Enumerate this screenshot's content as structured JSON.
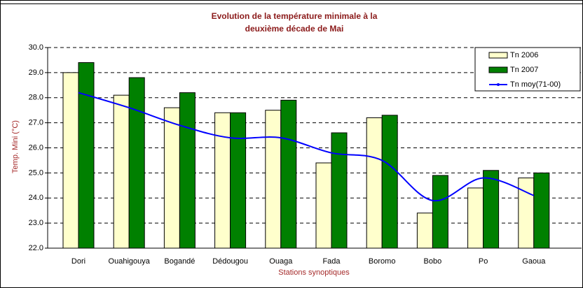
{
  "chart_data": {
    "type": "bar",
    "title": [
      "Evolution de la température minimale à la",
      "deuxième décade de Mai"
    ],
    "y_label": "Temp. Mini (°C)",
    "x_label": "Stations synoptiques",
    "categories": [
      "Dori",
      "Ouahigouya",
      "Bogandé",
      "Dédougou",
      "Ouaga",
      "Fada",
      "Boromo",
      "Bobo",
      "Po",
      "Gaoua"
    ],
    "series": [
      {
        "name": "Tn 2006",
        "type": "bar",
        "color": "#ffffcc",
        "values": [
          29.0,
          28.1,
          27.6,
          27.4,
          27.5,
          25.4,
          27.2,
          23.4,
          24.4,
          24.8
        ]
      },
      {
        "name": "Tn 2007",
        "type": "bar",
        "color": "#008000",
        "values": [
          29.4,
          28.8,
          28.2,
          27.4,
          27.9,
          26.6,
          27.3,
          24.9,
          25.1,
          25.0
        ]
      },
      {
        "name": "Tn moy(71-00)",
        "type": "line",
        "color": "#0000ff",
        "values": [
          28.2,
          27.6,
          26.9,
          26.4,
          26.4,
          25.8,
          25.5,
          23.9,
          24.8,
          24.1
        ]
      }
    ],
    "ylim": [
      22,
      30
    ],
    "yticks": [
      {
        "value": 22,
        "label": "22.0"
      },
      {
        "value": 23,
        "label": "23.0"
      },
      {
        "value": 24,
        "label": "24.0"
      },
      {
        "value": 25,
        "label": "25.0"
      },
      {
        "value": 26,
        "label": "26.0"
      },
      {
        "value": 27,
        "label": "27.0"
      },
      {
        "value": 28,
        "label": "28.0"
      },
      {
        "value": 29,
        "label": "29.0"
      },
      {
        "value": 30,
        "label": "30.0"
      }
    ],
    "grid": true,
    "legend": "top-right"
  }
}
